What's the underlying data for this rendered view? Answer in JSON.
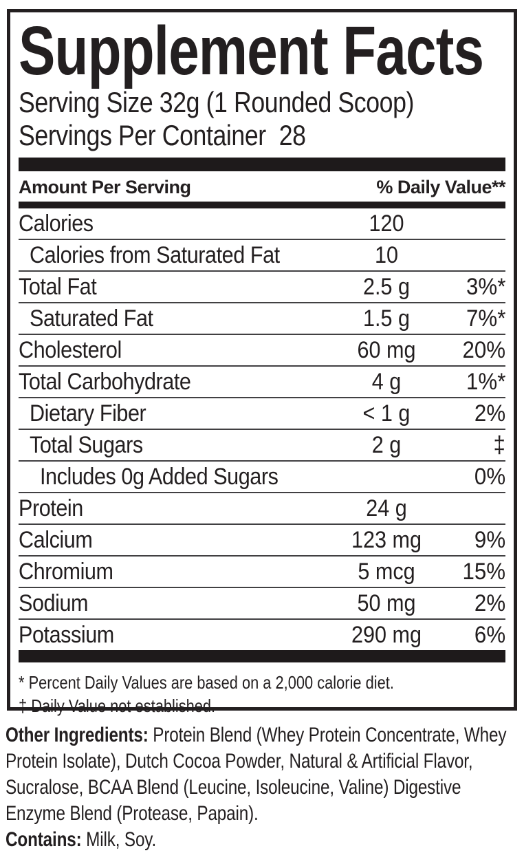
{
  "colors": {
    "text": "#231f20",
    "bars": "#1e1a1b",
    "hairline": "#414042",
    "background": "#ffffff"
  },
  "label": {
    "title": "Supplement Facts",
    "serving_size": "Serving Size 32g (1 Rounded Scoop)",
    "servings_per_container": "Servings Per Container  28",
    "columns": {
      "left": "Amount Per Serving",
      "right": "% Daily Value**"
    },
    "rows": [
      {
        "name": "Calories",
        "amount": "120",
        "dv": "",
        "indent": 0
      },
      {
        "name": "Calories from Saturated Fat",
        "amount": "10",
        "dv": "",
        "indent": 1
      },
      {
        "name": "Total Fat",
        "amount": "2.5 g",
        "dv": "3%*",
        "indent": 0
      },
      {
        "name": "Saturated Fat",
        "amount": "1.5 g",
        "dv": "7%*",
        "indent": 1
      },
      {
        "name": "Cholesterol",
        "amount": "60 mg",
        "dv": "20%",
        "indent": 0
      },
      {
        "name": "Total Carbohydrate",
        "amount": "4 g",
        "dv": "1%*",
        "indent": 0
      },
      {
        "name": "Dietary Fiber",
        "amount": "< 1 g",
        "dv": "2%",
        "indent": 1
      },
      {
        "name": "Total Sugars",
        "amount": "2 g",
        "dv": "‡",
        "indent": 1
      },
      {
        "name": "Includes 0g Added Sugars",
        "amount": "",
        "dv": "0%",
        "indent": 2
      },
      {
        "name": "Protein",
        "amount": "24 g",
        "dv": "",
        "indent": 0
      },
      {
        "name": "Calcium",
        "amount": "123 mg",
        "dv": "9%",
        "indent": 0
      },
      {
        "name": "Chromium",
        "amount": "5 mcg",
        "dv": "15%",
        "indent": 0
      },
      {
        "name": "Sodium",
        "amount": "50 mg",
        "dv": "2%",
        "indent": 0
      },
      {
        "name": "Potassium",
        "amount": "290 mg",
        "dv": "6%",
        "indent": 0
      }
    ],
    "footnotes": [
      "* Percent Daily Values are based on a 2,000 calorie diet.",
      "‡ Daily Value not established."
    ]
  },
  "ingredients": {
    "other_label": "Other Ingredients:",
    "other_text": " Protein Blend (Whey Protein Concentrate, Whey Protein Isolate), Dutch Cocoa Powder, Natural & Artificial Flavor, Sucralose, BCAA Blend (Leucine, Isoleucine, Valine) Digestive Enzyme Blend (Protease, Papain).",
    "contains_label": "Contains:",
    "contains_text": " Milk, Soy."
  }
}
